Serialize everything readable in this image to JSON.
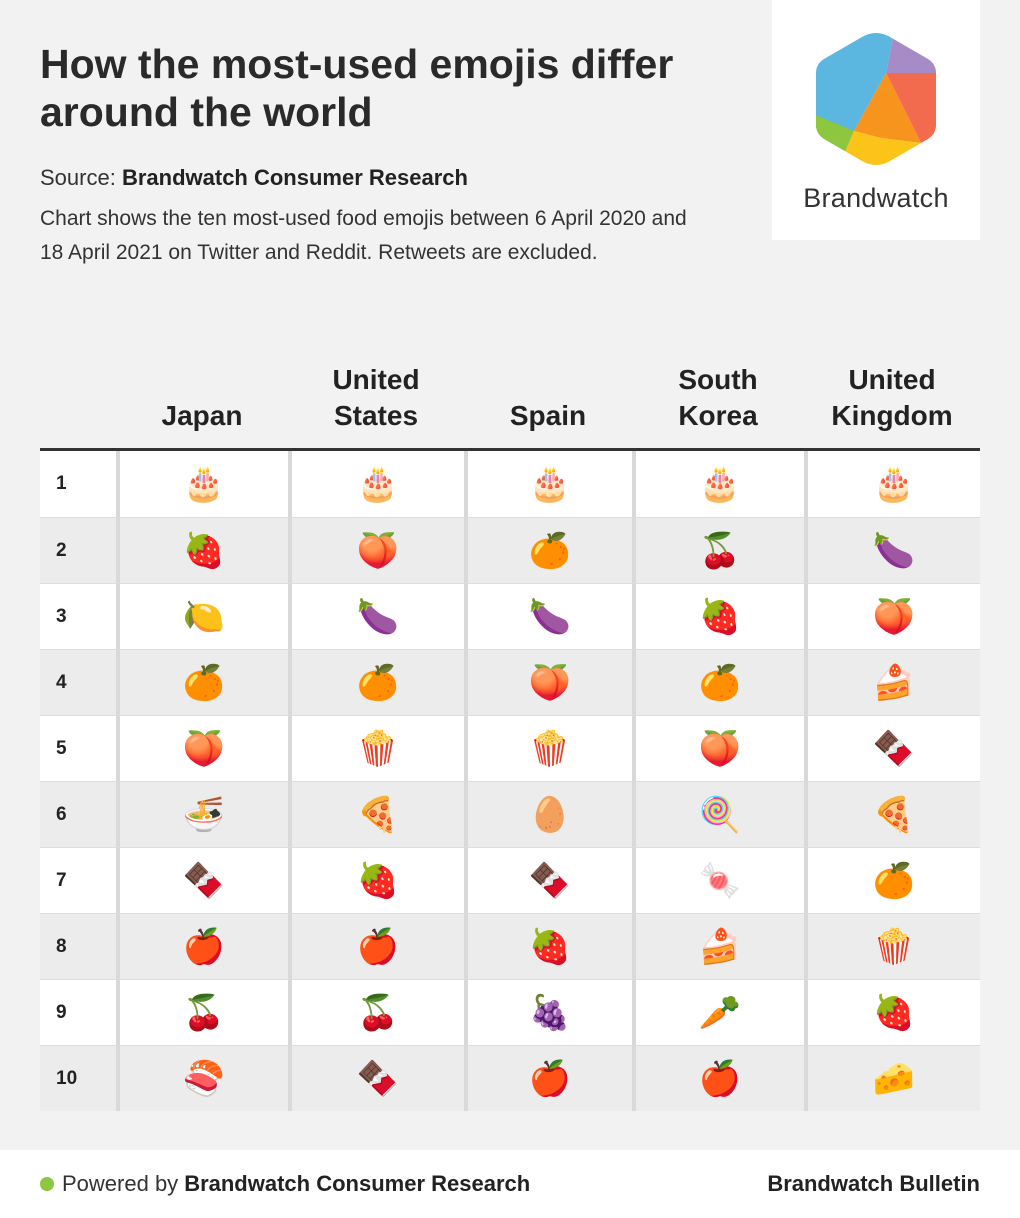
{
  "header": {
    "title": "How the most-used emojis differ around the world",
    "source_label": "Source:",
    "source_value": "Brandwatch Consumer Research",
    "description": "Chart shows the ten most-used food emojis between 6 April 2020 and 18 April 2021 on Twitter and Reddit. Retweets are excluded."
  },
  "logo": {
    "wordmark": "Brandwatch",
    "colors": [
      "#5bb6e0",
      "#a68bc6",
      "#f26b4f",
      "#f7941d",
      "#fcc419",
      "#8dc63f"
    ]
  },
  "chart_data": {
    "type": "table",
    "title": "How the most-used emojis differ around the world",
    "columns": [
      "Japan",
      "United States",
      "Spain",
      "South Korea",
      "United Kingdom"
    ],
    "ranks": [
      "1",
      "2",
      "3",
      "4",
      "5",
      "6",
      "7",
      "8",
      "9",
      "10"
    ],
    "rows": [
      [
        "🎂",
        "🎂",
        "🎂",
        "🎂",
        "🎂"
      ],
      [
        "🍓",
        "🍑",
        "🍊",
        "🍒",
        "🍆"
      ],
      [
        "🍋",
        "🍆",
        "🍆",
        "🍓",
        "🍑"
      ],
      [
        "🍊",
        "🍊",
        "🍑",
        "🍊",
        "🍰"
      ],
      [
        "🍑",
        "🍿",
        "🍿",
        "🍑",
        "🍫"
      ],
      [
        "🍜",
        "🍕",
        "🥚",
        "🍭",
        "🍕"
      ],
      [
        "🍫",
        "🍓",
        "🍫",
        "🍬",
        "🍊"
      ],
      [
        "🍎",
        "🍎",
        "🍓",
        "🍰",
        "🍿"
      ],
      [
        "🍒",
        "🍒",
        "🍇",
        "🥕",
        "🍓"
      ],
      [
        "🍣",
        "🍫",
        "🍎",
        "🍎",
        "🧀"
      ]
    ]
  },
  "footer": {
    "powered_prefix": "Powered by",
    "powered_brand": "Brandwatch Consumer Research",
    "bulletin": "Brandwatch Bulletin",
    "dot_color": "#8dc63f"
  }
}
